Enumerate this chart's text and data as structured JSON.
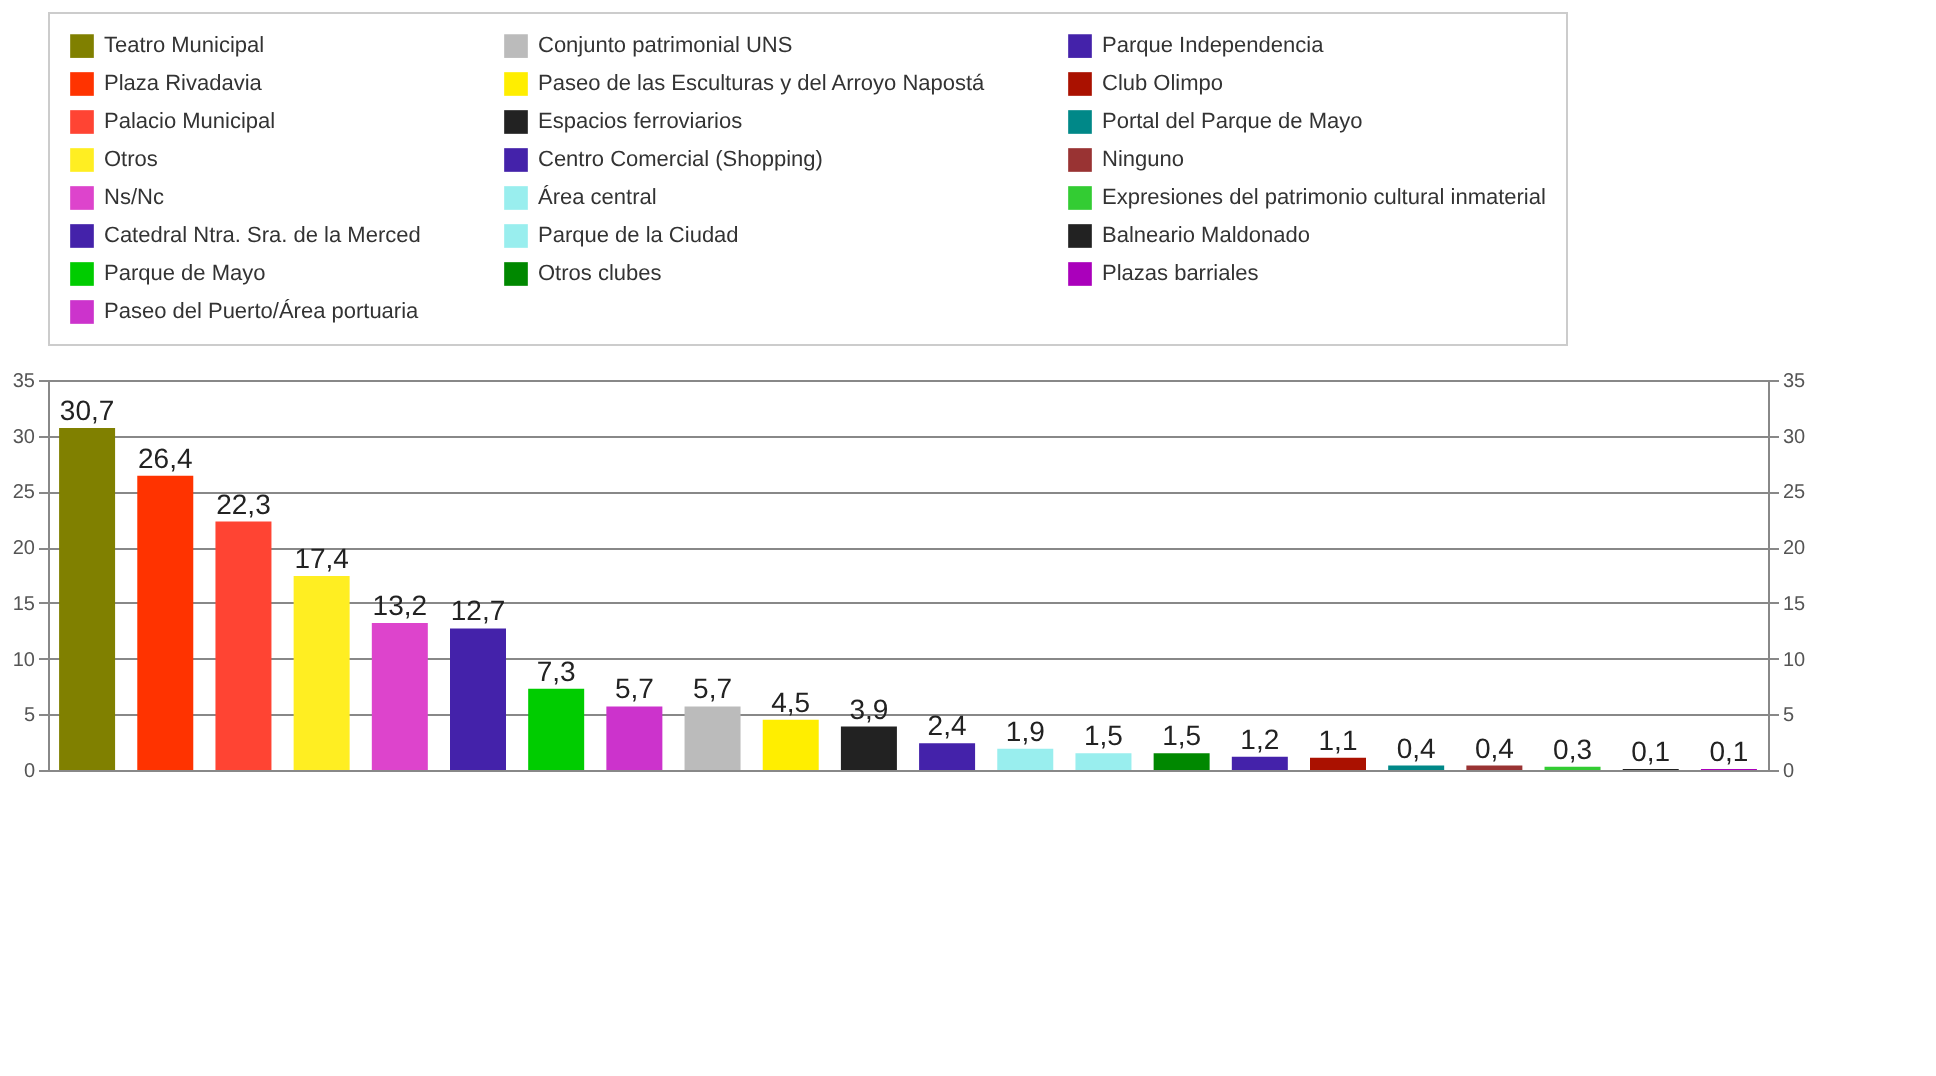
{
  "chart_data": {
    "type": "bar",
    "categories": [
      null,
      null,
      null,
      null,
      null,
      null,
      null,
      null,
      null,
      null,
      null,
      null,
      null,
      null,
      null,
      null,
      null,
      null,
      null,
      null,
      null,
      null
    ],
    "series": [
      {
        "name": "Teatro Municipal",
        "color": "#808000",
        "values": [
          30.7,
          null,
          null,
          null,
          null,
          null,
          null,
          null,
          null,
          null,
          null,
          null,
          null,
          null,
          null,
          null,
          null,
          null,
          null,
          null,
          null,
          null
        ],
        "value_labels": [
          "30,7",
          null,
          null,
          null,
          null,
          null,
          null,
          null,
          null,
          null,
          null,
          null,
          null,
          null,
          null,
          null,
          null,
          null,
          null,
          null,
          null,
          null
        ]
      },
      {
        "name": "Plaza Rivadavia",
        "color": "#ff3300",
        "values": [
          null,
          26.4,
          null,
          null,
          null,
          null,
          null,
          null,
          null,
          null,
          null,
          null,
          null,
          null,
          null,
          null,
          null,
          null,
          null,
          null,
          null,
          null
        ],
        "value_labels": [
          null,
          "26,4",
          null,
          null,
          null,
          null,
          null,
          null,
          null,
          null,
          null,
          null,
          null,
          null,
          null,
          null,
          null,
          null,
          null,
          null,
          null,
          null
        ]
      },
      {
        "name": "Palacio Municipal",
        "color": "#ff4433",
        "values": [
          null,
          null,
          22.3,
          null,
          null,
          null,
          null,
          null,
          null,
          null,
          null,
          null,
          null,
          null,
          null,
          null,
          null,
          null,
          null,
          null,
          null,
          null
        ],
        "value_labels": [
          null,
          null,
          "22,3",
          null,
          null,
          null,
          null,
          null,
          null,
          null,
          null,
          null,
          null,
          null,
          null,
          null,
          null,
          null,
          null,
          null,
          null,
          null
        ]
      },
      {
        "name": "Otros",
        "color": "#ffee22",
        "values": [
          null,
          null,
          null,
          17.4,
          null,
          null,
          null,
          null,
          null,
          null,
          null,
          null,
          null,
          null,
          null,
          null,
          null,
          null,
          null,
          null,
          null,
          null
        ],
        "value_labels": [
          null,
          null,
          null,
          "17,4",
          null,
          null,
          null,
          null,
          null,
          null,
          null,
          null,
          null,
          null,
          null,
          null,
          null,
          null,
          null,
          null,
          null,
          null
        ]
      },
      {
        "name": "Ns/Nc",
        "color": "#dd44cc",
        "values": [
          null,
          null,
          null,
          null,
          13.2,
          null,
          null,
          null,
          null,
          null,
          null,
          null,
          null,
          null,
          null,
          null,
          null,
          null,
          null,
          null,
          null,
          null
        ],
        "value_labels": [
          null,
          null,
          null,
          null,
          "13,2",
          null,
          null,
          null,
          null,
          null,
          null,
          null,
          null,
          null,
          null,
          null,
          null,
          null,
          null,
          null,
          null,
          null
        ]
      },
      {
        "name": "Catedral Ntra. Sra. de la Merced",
        "color": "#4422aa",
        "values": [
          null,
          null,
          null,
          null,
          null,
          12.7,
          null,
          null,
          null,
          null,
          null,
          null,
          null,
          null,
          null,
          null,
          null,
          null,
          null,
          null,
          null,
          null
        ],
        "value_labels": [
          null,
          null,
          null,
          null,
          null,
          "12,7",
          null,
          null,
          null,
          null,
          null,
          null,
          null,
          null,
          null,
          null,
          null,
          null,
          null,
          null,
          null,
          null
        ]
      },
      {
        "name": "Parque de Mayo",
        "color": "#00cc00",
        "values": [
          null,
          null,
          null,
          null,
          null,
          null,
          7.3,
          null,
          null,
          null,
          null,
          null,
          null,
          null,
          null,
          null,
          null,
          null,
          null,
          null,
          null,
          null
        ],
        "value_labels": [
          null,
          null,
          null,
          null,
          null,
          null,
          "7,3",
          null,
          null,
          null,
          null,
          null,
          null,
          null,
          null,
          null,
          null,
          null,
          null,
          null,
          null,
          null
        ]
      },
      {
        "name": "Paseo del Puerto/Área portuaria",
        "color": "#cc33cc",
        "values": [
          null,
          null,
          null,
          null,
          null,
          null,
          null,
          5.7,
          null,
          null,
          null,
          null,
          null,
          null,
          null,
          null,
          null,
          null,
          null,
          null,
          null,
          null
        ],
        "value_labels": [
          null,
          null,
          null,
          null,
          null,
          null,
          null,
          "5,7",
          null,
          null,
          null,
          null,
          null,
          null,
          null,
          null,
          null,
          null,
          null,
          null,
          null,
          null
        ]
      },
      {
        "name": "Conjunto patrimonial UNS",
        "color": "#bbbbbb",
        "values": [
          null,
          null,
          null,
          null,
          null,
          null,
          null,
          null,
          5.7,
          null,
          null,
          null,
          null,
          null,
          null,
          null,
          null,
          null,
          null,
          null,
          null,
          null
        ],
        "value_labels": [
          null,
          null,
          null,
          null,
          null,
          null,
          null,
          null,
          "5,7",
          null,
          null,
          null,
          null,
          null,
          null,
          null,
          null,
          null,
          null,
          null,
          null,
          null
        ]
      },
      {
        "name": "Paseo de las Esculturas y del Arroyo Napostá",
        "color": "#ffee00",
        "values": [
          null,
          null,
          null,
          null,
          null,
          null,
          null,
          null,
          null,
          4.5,
          null,
          null,
          null,
          null,
          null,
          null,
          null,
          null,
          null,
          null,
          null,
          null
        ],
        "value_labels": [
          null,
          null,
          null,
          null,
          null,
          null,
          null,
          null,
          null,
          "4,5",
          null,
          null,
          null,
          null,
          null,
          null,
          null,
          null,
          null,
          null,
          null,
          null
        ]
      },
      {
        "name": "Espacios ferroviarios",
        "color": "#222222",
        "values": [
          null,
          null,
          null,
          null,
          null,
          null,
          null,
          null,
          null,
          null,
          3.9,
          null,
          null,
          null,
          null,
          null,
          null,
          null,
          null,
          null,
          null,
          null
        ],
        "value_labels": [
          null,
          null,
          null,
          null,
          null,
          null,
          null,
          null,
          null,
          null,
          "3,9",
          null,
          null,
          null,
          null,
          null,
          null,
          null,
          null,
          null,
          null,
          null
        ]
      },
      {
        "name": "Centro Comercial (Shopping)",
        "color": "#4422aa",
        "values": [
          null,
          null,
          null,
          null,
          null,
          null,
          null,
          null,
          null,
          null,
          null,
          2.4,
          null,
          null,
          null,
          null,
          null,
          null,
          null,
          null,
          null,
          null
        ],
        "value_labels": [
          null,
          null,
          null,
          null,
          null,
          null,
          null,
          null,
          null,
          null,
          null,
          "2,4",
          null,
          null,
          null,
          null,
          null,
          null,
          null,
          null,
          null,
          null
        ]
      },
      {
        "name": "Área central",
        "color": "#99eeee",
        "values": [
          null,
          null,
          null,
          null,
          null,
          null,
          null,
          null,
          null,
          null,
          null,
          null,
          1.9,
          null,
          null,
          null,
          null,
          null,
          null,
          null,
          null,
          null
        ],
        "value_labels": [
          null,
          null,
          null,
          null,
          null,
          null,
          null,
          null,
          null,
          null,
          null,
          null,
          "1,9",
          null,
          null,
          null,
          null,
          null,
          null,
          null,
          null,
          null
        ]
      },
      {
        "name": "Parque de la Ciudad",
        "color": "#99eeee",
        "values": [
          null,
          null,
          null,
          null,
          null,
          null,
          null,
          null,
          null,
          null,
          null,
          null,
          null,
          1.5,
          null,
          null,
          null,
          null,
          null,
          null,
          null,
          null
        ],
        "value_labels": [
          null,
          null,
          null,
          null,
          null,
          null,
          null,
          null,
          null,
          null,
          null,
          null,
          null,
          "1,5",
          null,
          null,
          null,
          null,
          null,
          null,
          null,
          null
        ]
      },
      {
        "name": "Otros clubes",
        "color": "#008800",
        "values": [
          null,
          null,
          null,
          null,
          null,
          null,
          null,
          null,
          null,
          null,
          null,
          null,
          null,
          null,
          1.5,
          null,
          null,
          null,
          null,
          null,
          null,
          null
        ],
        "value_labels": [
          null,
          null,
          null,
          null,
          null,
          null,
          null,
          null,
          null,
          null,
          null,
          null,
          null,
          null,
          "1,5",
          null,
          null,
          null,
          null,
          null,
          null,
          null
        ]
      },
      {
        "name": "Parque Independencia",
        "color": "#4422aa",
        "values": [
          null,
          null,
          null,
          null,
          null,
          null,
          null,
          null,
          null,
          null,
          null,
          null,
          null,
          null,
          null,
          1.2,
          null,
          null,
          null,
          null,
          null,
          null
        ],
        "value_labels": [
          null,
          null,
          null,
          null,
          null,
          null,
          null,
          null,
          null,
          null,
          null,
          null,
          null,
          null,
          null,
          "1,2",
          null,
          null,
          null,
          null,
          null,
          null
        ]
      },
      {
        "name": "Club Olimpo",
        "color": "#aa1100",
        "values": [
          null,
          null,
          null,
          null,
          null,
          null,
          null,
          null,
          null,
          null,
          null,
          null,
          null,
          null,
          null,
          null,
          1.1,
          null,
          null,
          null,
          null,
          null
        ],
        "value_labels": [
          null,
          null,
          null,
          null,
          null,
          null,
          null,
          null,
          null,
          null,
          null,
          null,
          null,
          null,
          null,
          null,
          "1,1",
          null,
          null,
          null,
          null,
          null
        ]
      },
      {
        "name": "Portal del Parque de Mayo",
        "color": "#008888",
        "values": [
          null,
          null,
          null,
          null,
          null,
          null,
          null,
          null,
          null,
          null,
          null,
          null,
          null,
          null,
          null,
          null,
          null,
          0.4,
          null,
          null,
          null,
          null
        ],
        "value_labels": [
          null,
          null,
          null,
          null,
          null,
          null,
          null,
          null,
          null,
          null,
          null,
          null,
          null,
          null,
          null,
          null,
          null,
          "0,4",
          null,
          null,
          null,
          null
        ]
      },
      {
        "name": "Ninguno",
        "color": "#993333",
        "values": [
          null,
          null,
          null,
          null,
          null,
          null,
          null,
          null,
          null,
          null,
          null,
          null,
          null,
          null,
          null,
          null,
          null,
          null,
          0.4,
          null,
          null,
          null
        ],
        "value_labels": [
          null,
          null,
          null,
          null,
          null,
          null,
          null,
          null,
          null,
          null,
          null,
          null,
          null,
          null,
          null,
          null,
          null,
          null,
          "0,4",
          null,
          null,
          null
        ]
      },
      {
        "name": "Expresiones del patrimonio cultural inmaterial",
        "color": "#33cc33",
        "values": [
          null,
          null,
          null,
          null,
          null,
          null,
          null,
          null,
          null,
          null,
          null,
          null,
          null,
          null,
          null,
          null,
          null,
          null,
          null,
          0.3,
          null,
          null
        ],
        "value_labels": [
          null,
          null,
          null,
          null,
          null,
          null,
          null,
          null,
          null,
          null,
          null,
          null,
          null,
          null,
          null,
          null,
          null,
          null,
          null,
          "0,3",
          null,
          null
        ]
      },
      {
        "name": "Balneario Maldonado",
        "color": "#222222",
        "values": [
          null,
          null,
          null,
          null,
          null,
          null,
          null,
          null,
          null,
          null,
          null,
          null,
          null,
          null,
          null,
          null,
          null,
          null,
          null,
          null,
          0.1,
          null
        ],
        "value_labels": [
          null,
          null,
          null,
          null,
          null,
          null,
          null,
          null,
          null,
          null,
          null,
          null,
          null,
          null,
          null,
          null,
          null,
          null,
          null,
          null,
          "0,1",
          null
        ]
      },
      {
        "name": "Plazas barriales",
        "color": "#aa00bb",
        "values": [
          null,
          null,
          null,
          null,
          null,
          null,
          null,
          null,
          null,
          null,
          null,
          null,
          null,
          null,
          null,
          null,
          null,
          null,
          null,
          null,
          null,
          0.1
        ],
        "value_labels": [
          null,
          null,
          null,
          null,
          null,
          null,
          null,
          null,
          null,
          null,
          null,
          null,
          null,
          null,
          null,
          null,
          null,
          null,
          null,
          null,
          null,
          "0,1"
        ]
      }
    ],
    "ylim": [
      0,
      35
    ],
    "yticks": [
      0,
      5,
      10,
      15,
      20,
      25,
      30,
      35
    ],
    "y2lim": [
      0,
      35
    ],
    "y2ticks": [
      0,
      5,
      10,
      15,
      20,
      25,
      30,
      35
    ],
    "grid": "y",
    "legend": "top"
  }
}
